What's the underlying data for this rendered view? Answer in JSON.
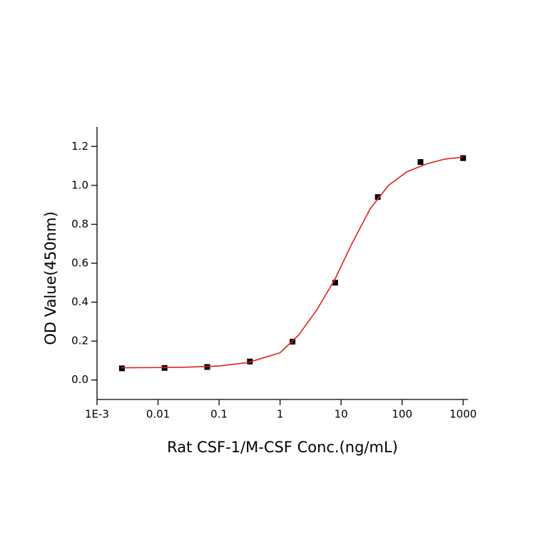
{
  "chart_data": {
    "type": "scatter",
    "x_label": "Rat CSF-1/M-CSF Conc.(ng/mL)",
    "y_label": "OD Value(450nm)",
    "x_scale": "log",
    "xlim": [
      0.001,
      1200
    ],
    "ylim": [
      -0.1,
      1.3
    ],
    "xticks": [
      {
        "value": 0.001,
        "label": "1E-3"
      },
      0.01,
      0.1,
      1,
      10,
      100,
      1000
    ],
    "yticks": [
      {
        "value": 0,
        "label": "0.0"
      },
      0.2,
      0.4,
      0.6,
      0.8,
      {
        "value": 1,
        "label": "1.0"
      },
      1.2
    ],
    "series": [
      {
        "kind": "points",
        "color": "#000000",
        "x": [
          0.00256,
          0.0128,
          0.064,
          0.32,
          1.6,
          8,
          40,
          200,
          1000
        ],
        "values": [
          0.06,
          0.062,
          0.067,
          0.095,
          0.197,
          0.5,
          0.94,
          1.12,
          1.14
        ]
      },
      {
        "kind": "fit",
        "color": "#e0201b",
        "x": [
          0.0025,
          0.01,
          0.03,
          0.1,
          0.3,
          1,
          2,
          4,
          8,
          15,
          30,
          60,
          120,
          250,
          500,
          1000
        ],
        "values": [
          0.063,
          0.064,
          0.066,
          0.072,
          0.09,
          0.14,
          0.23,
          0.36,
          0.52,
          0.7,
          0.88,
          1.0,
          1.07,
          1.11,
          1.135,
          1.145
        ]
      }
    ]
  }
}
